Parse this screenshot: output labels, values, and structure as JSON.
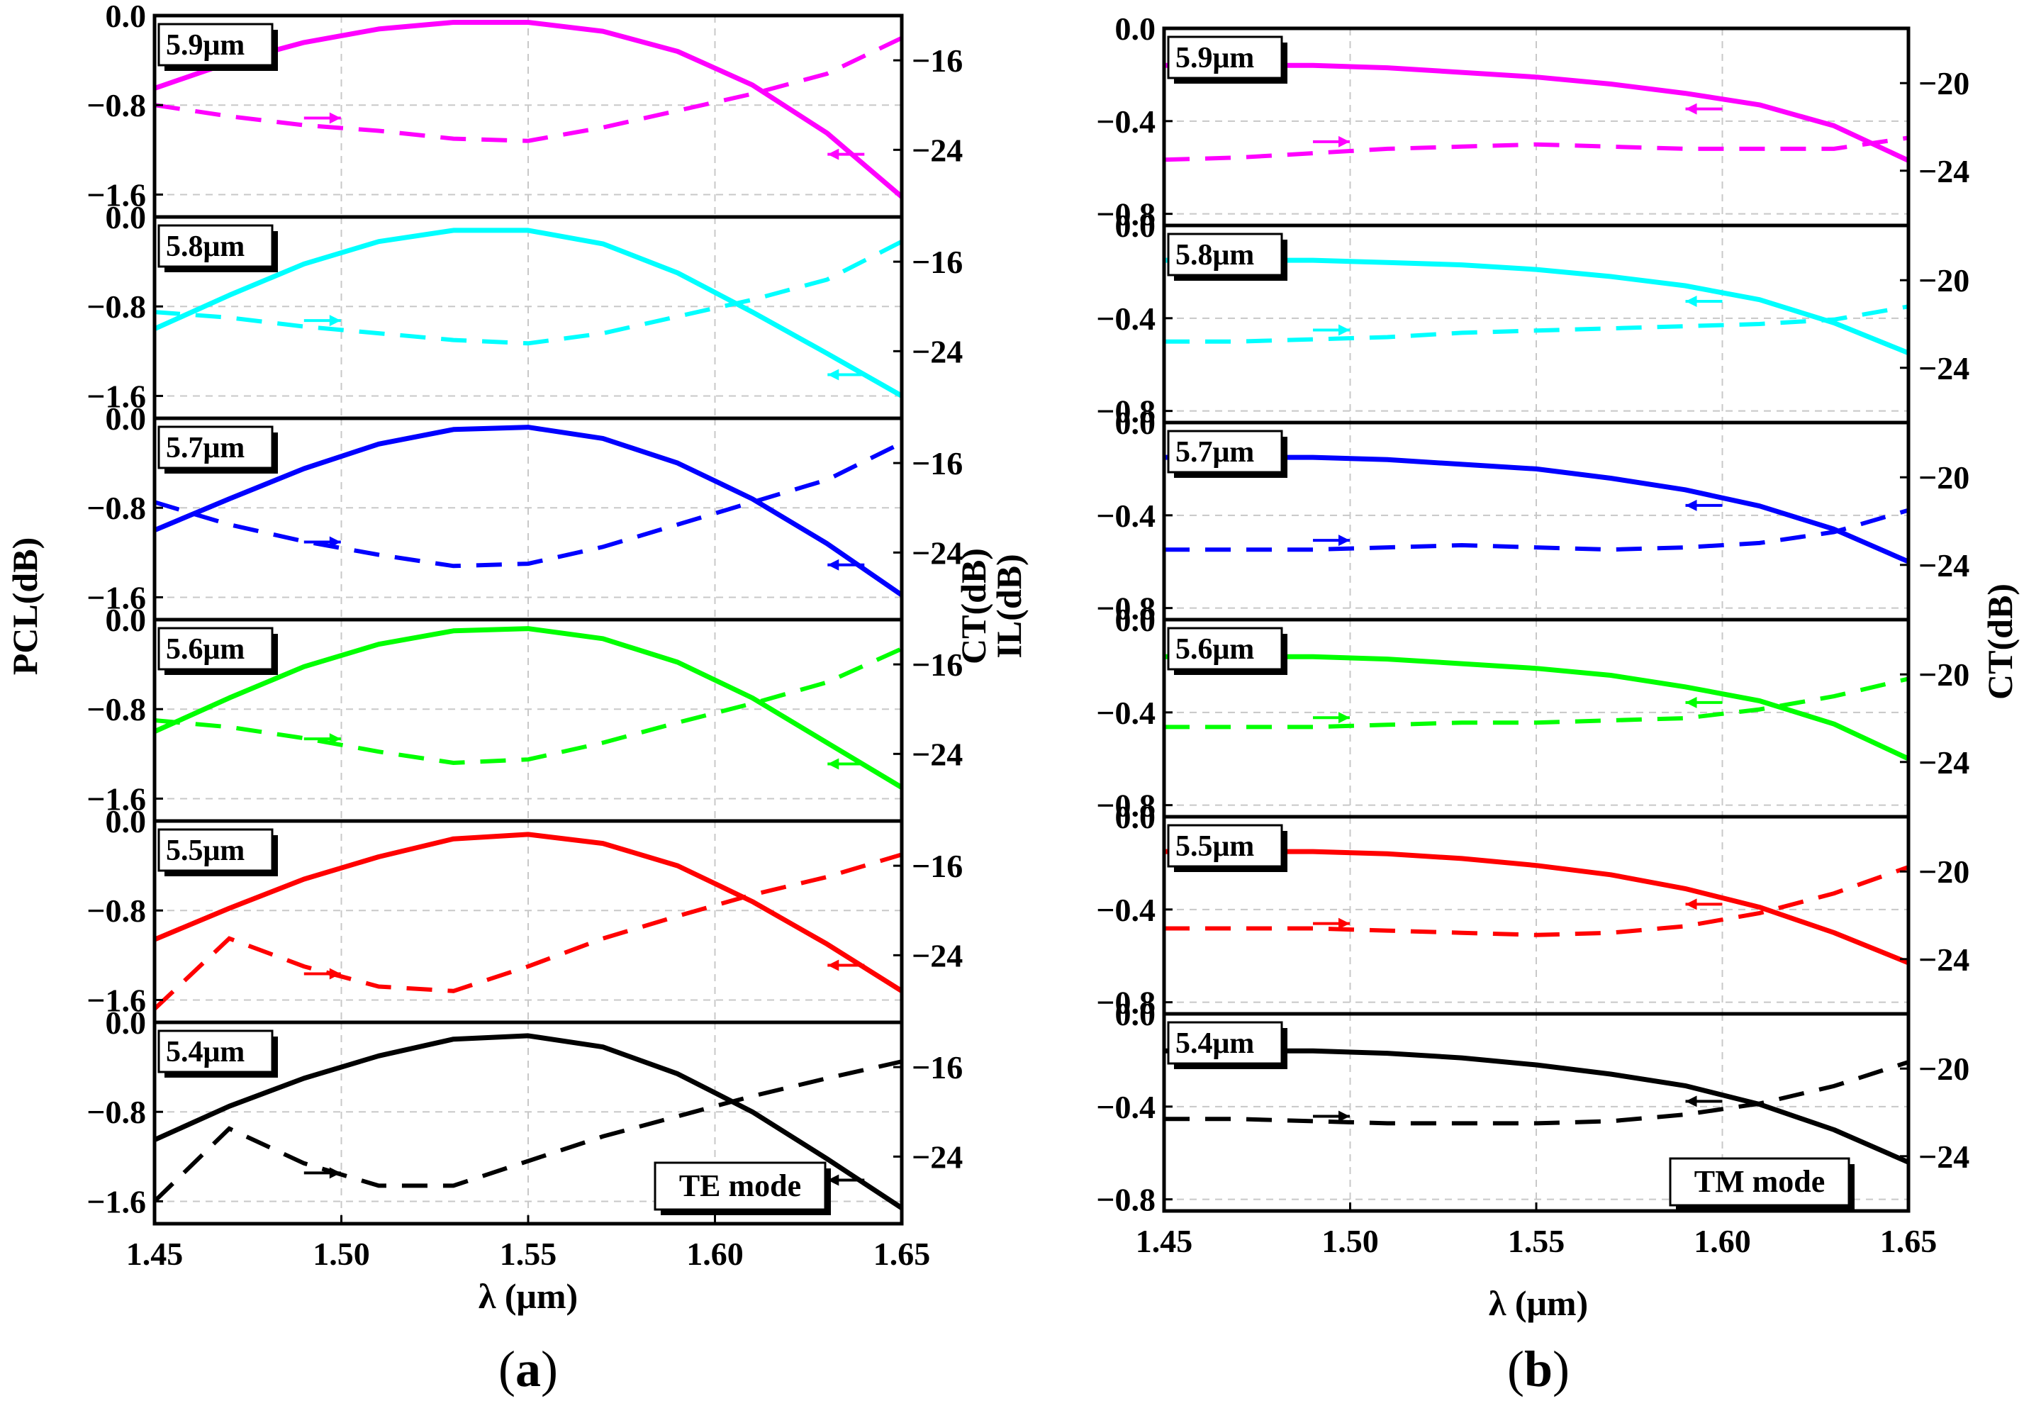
{
  "chart_data": [
    {
      "id": "a",
      "type": "line",
      "panel_label": "a",
      "mode_label": "TE mode",
      "xlabel": "λ (μm)",
      "ylabel_left": "PCL(dB)",
      "ylabel_right": "CT(dB)",
      "xlim": [
        1.45,
        1.65
      ],
      "xticks": [
        "1.45",
        "1.50",
        "1.55",
        "1.60",
        "1.65"
      ],
      "left_ylim": [
        -1.8,
        0.0
      ],
      "left_yticks": [
        "0.0",
        "−0.8",
        "−1.6"
      ],
      "right_ylim": [
        -30,
        -12
      ],
      "right_yticks": [
        "−16",
        "−24"
      ],
      "x": [
        1.45,
        1.47,
        1.49,
        1.51,
        1.53,
        1.55,
        1.57,
        1.59,
        1.61,
        1.63,
        1.65
      ],
      "series": [
        {
          "name": "5.9μm",
          "color": "#ff00ff",
          "solid": [
            -0.65,
            -0.42,
            -0.24,
            -0.12,
            -0.06,
            -0.06,
            -0.14,
            -0.32,
            -0.62,
            -1.05,
            -1.62
          ],
          "dashed": [
            -20.0,
            -21.0,
            -21.8,
            -22.3,
            -23.0,
            -23.2,
            -22.0,
            -20.5,
            -19.0,
            -17.2,
            -14.0
          ]
        },
        {
          "name": "5.8μm",
          "color": "#00ffff",
          "solid": [
            -1.0,
            -0.7,
            -0.42,
            -0.22,
            -0.12,
            -0.12,
            -0.24,
            -0.5,
            -0.85,
            -1.22,
            -1.6
          ],
          "dashed": [
            -20.5,
            -21.0,
            -21.8,
            -22.4,
            -23.0,
            -23.3,
            -22.4,
            -20.9,
            -19.4,
            -17.6,
            -14.2
          ]
        },
        {
          "name": "5.7μm",
          "color": "#0000ff",
          "solid": [
            -1.0,
            -0.72,
            -0.45,
            -0.23,
            -0.1,
            -0.08,
            -0.18,
            -0.4,
            -0.72,
            -1.12,
            -1.58
          ],
          "dashed": [
            -19.5,
            -21.5,
            -23.0,
            -24.2,
            -25.2,
            -25.0,
            -23.5,
            -21.5,
            -19.5,
            -17.5,
            -14.2
          ]
        },
        {
          "name": "5.6μm",
          "color": "#00ff00",
          "solid": [
            -1.0,
            -0.7,
            -0.42,
            -0.22,
            -0.1,
            -0.08,
            -0.17,
            -0.38,
            -0.7,
            -1.1,
            -1.5
          ],
          "dashed": [
            -21.0,
            -21.6,
            -22.6,
            -23.8,
            -24.8,
            -24.5,
            -23.0,
            -21.2,
            -19.5,
            -17.6,
            -14.6
          ]
        },
        {
          "name": "5.5μm",
          "color": "#ff0000",
          "solid": [
            -1.06,
            -0.78,
            -0.52,
            -0.32,
            -0.16,
            -0.12,
            -0.2,
            -0.4,
            -0.72,
            -1.1,
            -1.52
          ],
          "dashed": [
            -28.8,
            -22.5,
            -25.0,
            -26.8,
            -27.2,
            -25.0,
            -22.5,
            -20.5,
            -18.6,
            -17.0,
            -15.0
          ]
        },
        {
          "name": "5.4μm",
          "color": "#000000",
          "solid": [
            -1.05,
            -0.75,
            -0.5,
            -0.3,
            -0.15,
            -0.12,
            -0.22,
            -0.46,
            -0.8,
            -1.22,
            -1.66
          ],
          "dashed": [
            -28.0,
            -21.5,
            -24.6,
            -26.6,
            -26.6,
            -24.4,
            -22.2,
            -20.4,
            -18.6,
            -17.0,
            -15.5
          ]
        }
      ]
    },
    {
      "id": "b",
      "type": "line",
      "panel_label": "b",
      "mode_label": "TM mode",
      "xlabel": "λ (μm)",
      "ylabel_left": "IL(dB)",
      "ylabel_right": "CT(dB)",
      "xlim": [
        1.45,
        1.65
      ],
      "xticks": [
        "1.45",
        "1.50",
        "1.55",
        "1.60",
        "1.65"
      ],
      "left_ylim": [
        -0.85,
        0.0
      ],
      "left_yticks": [
        "0.0",
        "−0.4",
        "−0.8"
      ],
      "right_ylim": [
        -26.5,
        -17.5
      ],
      "right_yticks": [
        "−20",
        "−24"
      ],
      "x": [
        1.45,
        1.47,
        1.49,
        1.51,
        1.53,
        1.55,
        1.57,
        1.59,
        1.61,
        1.63,
        1.65
      ],
      "series": [
        {
          "name": "5.9μm",
          "color": "#ff00ff",
          "solid": [
            -0.16,
            -0.16,
            -0.16,
            -0.17,
            -0.19,
            -0.21,
            -0.24,
            -0.28,
            -0.33,
            -0.42,
            -0.57
          ],
          "dashed": [
            -23.5,
            -23.4,
            -23.2,
            -23.0,
            -22.9,
            -22.8,
            -22.9,
            -23.0,
            -23.0,
            -23.0,
            -22.5
          ]
        },
        {
          "name": "5.8μm",
          "color": "#00ffff",
          "solid": [
            -0.15,
            -0.15,
            -0.15,
            -0.16,
            -0.17,
            -0.19,
            -0.22,
            -0.26,
            -0.32,
            -0.42,
            -0.55
          ],
          "dashed": [
            -22.8,
            -22.8,
            -22.7,
            -22.6,
            -22.4,
            -22.3,
            -22.2,
            -22.1,
            -22.0,
            -21.8,
            -21.2
          ]
        },
        {
          "name": "5.7μm",
          "color": "#0000ff",
          "solid": [
            -0.15,
            -0.15,
            -0.15,
            -0.16,
            -0.18,
            -0.2,
            -0.24,
            -0.29,
            -0.36,
            -0.46,
            -0.6
          ],
          "dashed": [
            -23.3,
            -23.3,
            -23.3,
            -23.2,
            -23.1,
            -23.2,
            -23.3,
            -23.2,
            -23.0,
            -22.5,
            -21.5
          ]
        },
        {
          "name": "5.6μm",
          "color": "#00ff00",
          "solid": [
            -0.16,
            -0.16,
            -0.16,
            -0.17,
            -0.19,
            -0.21,
            -0.24,
            -0.29,
            -0.35,
            -0.45,
            -0.6
          ],
          "dashed": [
            -22.4,
            -22.4,
            -22.4,
            -22.3,
            -22.2,
            -22.2,
            -22.1,
            -22.0,
            -21.6,
            -21.0,
            -20.2
          ]
        },
        {
          "name": "5.5μm",
          "color": "#ff0000",
          "solid": [
            -0.15,
            -0.15,
            -0.15,
            -0.16,
            -0.18,
            -0.21,
            -0.25,
            -0.31,
            -0.39,
            -0.5,
            -0.63
          ],
          "dashed": [
            -22.6,
            -22.6,
            -22.6,
            -22.7,
            -22.8,
            -22.9,
            -22.8,
            -22.5,
            -21.9,
            -21.0,
            -19.8
          ]
        },
        {
          "name": "5.4μm",
          "color": "#000000",
          "solid": [
            -0.16,
            -0.16,
            -0.16,
            -0.17,
            -0.19,
            -0.22,
            -0.26,
            -0.31,
            -0.39,
            -0.5,
            -0.64
          ],
          "dashed": [
            -22.3,
            -22.3,
            -22.4,
            -22.5,
            -22.5,
            -22.5,
            -22.4,
            -22.1,
            -21.6,
            -20.8,
            -19.7
          ]
        }
      ]
    }
  ]
}
